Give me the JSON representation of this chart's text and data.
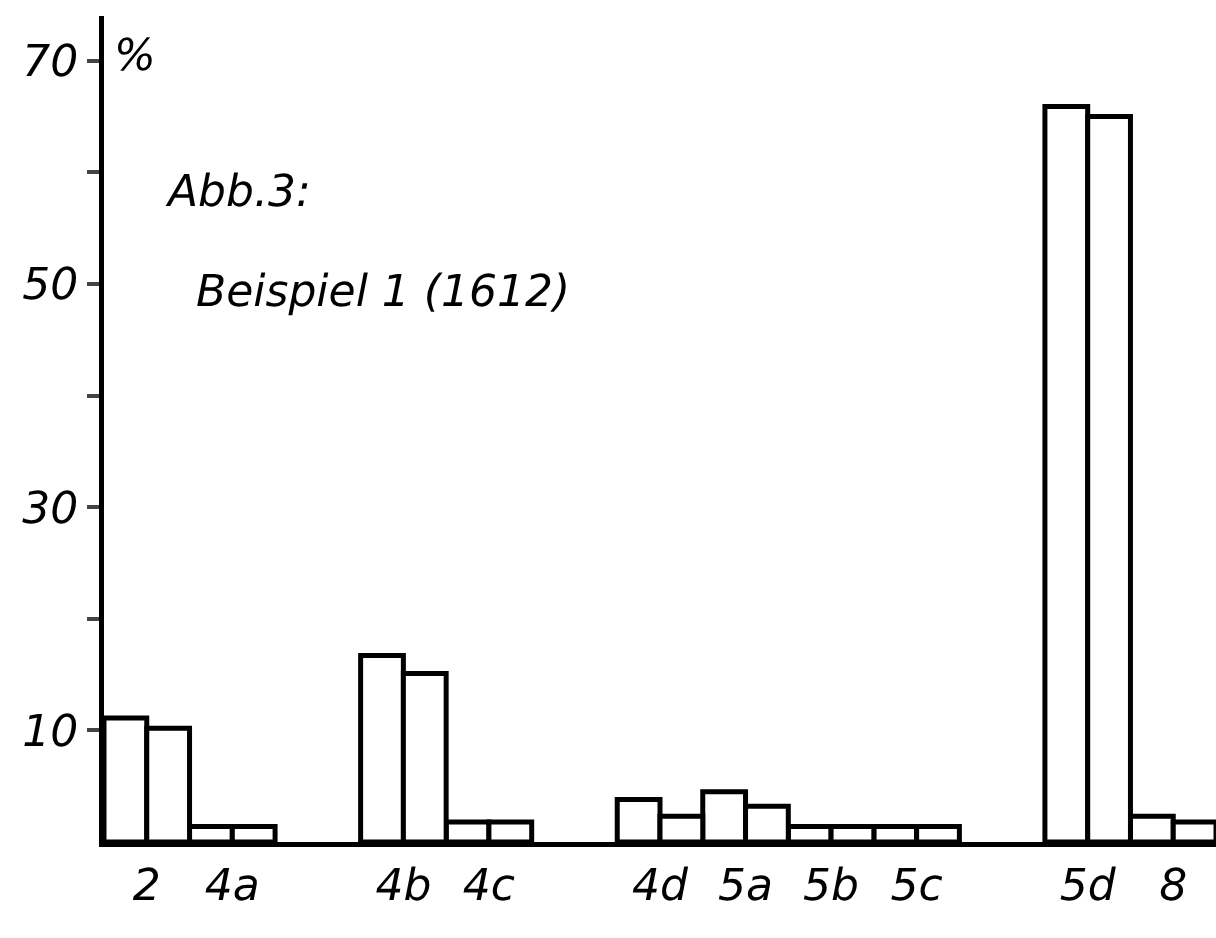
{
  "chart_data": {
    "type": "bar",
    "title": "Abb.3:",
    "subtitle": "Beispiel 1 (1612)",
    "ylabel": "%",
    "categories": [
      "2",
      "4a",
      null,
      "4b",
      "4c",
      null,
      "4d",
      "5a",
      "5b",
      "5c",
      null,
      "5d",
      "8"
    ],
    "series": [
      {
        "color": "#ffffff",
        "values": [
          11.1,
          1.4,
          null,
          16.7,
          1.8,
          null,
          3.8,
          4.5,
          1.4,
          1.4,
          null,
          65.9,
          2.3
        ]
      },
      {
        "color": "#ffffff",
        "values": [
          10.2,
          1.4,
          null,
          15.1,
          1.8,
          null,
          2.3,
          3.2,
          1.4,
          1.4,
          null,
          65.0,
          1.8
        ]
      }
    ],
    "ylim": [
      0,
      74
    ],
    "yticks": [
      {
        "value": 10,
        "label": "10"
      },
      {
        "value": 20,
        "label": null
      },
      {
        "value": 30,
        "label": "30"
      },
      {
        "value": 40,
        "label": null
      },
      {
        "value": 50,
        "label": "50"
      },
      {
        "value": 60,
        "label": null
      },
      {
        "value": 70,
        "label": "70"
      }
    ],
    "grid": false
  }
}
